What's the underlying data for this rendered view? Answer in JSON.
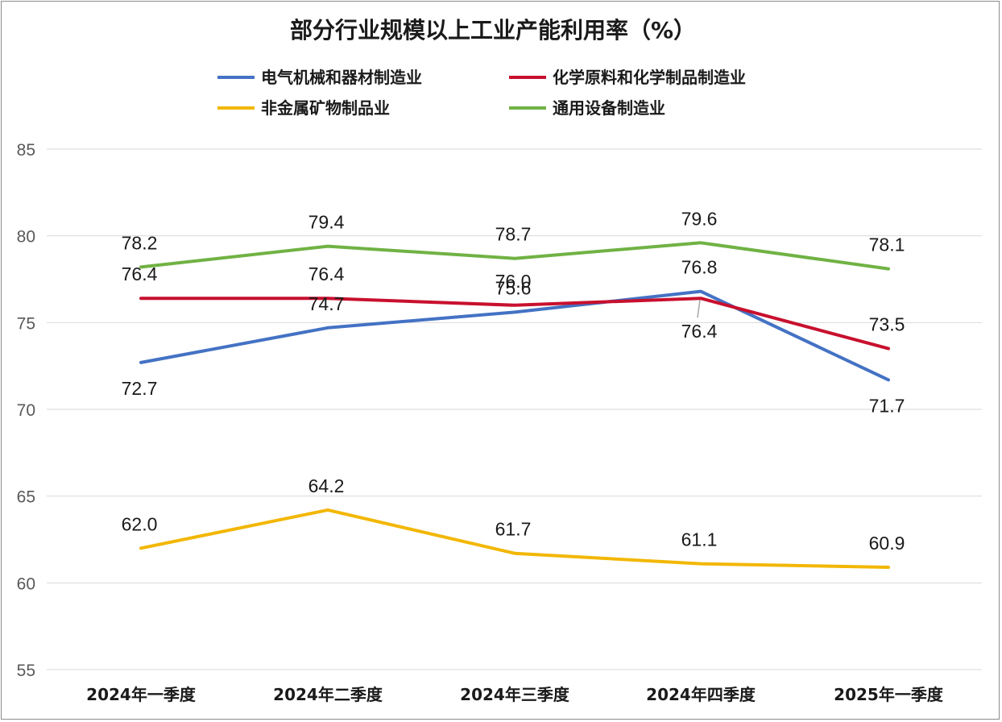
{
  "chart_data": {
    "type": "line",
    "title": "部分行业规模以上工业产能利用率（%）",
    "categories": [
      "2024年一季度",
      "2024年二季度",
      "2024年三季度",
      "2024年四季度",
      "2025年一季度"
    ],
    "ylim": [
      55,
      85
    ],
    "yticks": [
      "85",
      "80",
      "75",
      "70",
      "65",
      "60",
      "55"
    ],
    "grid": true,
    "legend_position": "top",
    "series": [
      {
        "name": "电气机械和器材制造业",
        "color": "#4472C4",
        "values": [
          72.7,
          74.7,
          75.6,
          76.8,
          71.7
        ],
        "labels": [
          "72.7",
          "74.7",
          "75.6",
          "76.8",
          "71.7"
        ]
      },
      {
        "name": "化学原料和化学制品制造业",
        "color": "#C8102E",
        "values": [
          76.4,
          76.4,
          76.0,
          76.4,
          73.5
        ],
        "labels": [
          "76.4",
          "76.4",
          "76.0",
          "76.4",
          "73.5"
        ]
      },
      {
        "name": "非金属矿物制品业",
        "color": "#F2B705",
        "values": [
          62.0,
          64.2,
          61.7,
          61.1,
          60.9
        ],
        "labels": [
          "62.0",
          "64.2",
          "61.7",
          "61.1",
          "60.9"
        ]
      },
      {
        "name": "通用设备制造业",
        "color": "#70B244",
        "values": [
          78.2,
          79.4,
          78.7,
          79.6,
          78.1
        ],
        "labels": [
          "78.2",
          "79.4",
          "78.7",
          "79.6",
          "78.1"
        ]
      }
    ]
  }
}
